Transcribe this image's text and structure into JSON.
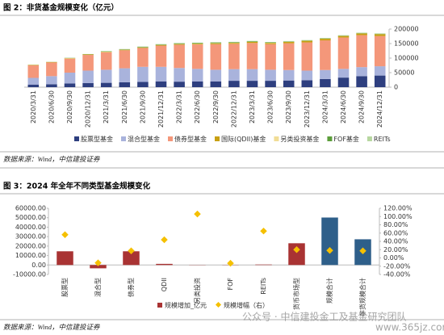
{
  "chart_data": [
    {
      "type": "stacked_bar",
      "title": "图 2：非货基金规模变化（亿元）",
      "source": "数据来源：Wind，中信建投证券",
      "categories": [
        "2020/3/31",
        "2020/6/30",
        "2020/9/30",
        "2020/12/31",
        "2021/3/31",
        "2021/6/30",
        "2021/9/30",
        "2021/12/31",
        "2022/3/31",
        "2022/6/30",
        "2022/9/30",
        "2022/12/31",
        "2023/3/31",
        "2023/6/30",
        "2023/9/30",
        "2023/12/31",
        "2024/3/31",
        "2024/6/30",
        "2024/9/30",
        "2024/12/31"
      ],
      "series": [
        {
          "name": "股票型基金",
          "color": "#2e3f7f",
          "values": [
            9000,
            10000,
            13000,
            14000,
            15000,
            17000,
            18000,
            20000,
            19000,
            20000,
            20000,
            22000,
            22000,
            22000,
            23000,
            24000,
            28000,
            33000,
            38000,
            40000
          ]
        },
        {
          "name": "混合型基金",
          "color": "#a9b3dc",
          "values": [
            23000,
            28000,
            37000,
            43000,
            45000,
            48000,
            52000,
            50000,
            47000,
            43000,
            40000,
            40000,
            40000,
            38000,
            36000,
            33000,
            31000,
            30000,
            31000,
            32000
          ]
        },
        {
          "name": "债券型基金",
          "color": "#f4977a",
          "values": [
            43000,
            47000,
            48000,
            54000,
            60000,
            62000,
            65000,
            73000,
            80000,
            84000,
            88000,
            87000,
            90000,
            88000,
            92000,
            97000,
            102000,
            108000,
            110000,
            104000
          ]
        },
        {
          "name": "国际(QDII)基金",
          "color": "#c8a012",
          "values": [
            1300,
            1300,
            1400,
            1500,
            1600,
            1600,
            1700,
            2000,
            2300,
            2500,
            3000,
            3300,
            3700,
            4000,
            4500,
            5300,
            5500,
            5000,
            5600,
            6000
          ]
        },
        {
          "name": "另类投资基金",
          "color": "#f1dd96",
          "values": [
            500,
            600,
            600,
            600,
            700,
            700,
            700,
            700,
            700,
            700,
            700,
            700,
            700,
            700,
            700,
            700,
            700,
            700,
            700,
            700
          ]
        },
        {
          "name": "FOF基金",
          "color": "#5c9e3a",
          "values": [
            300,
            400,
            700,
            900,
            1300,
            1600,
            2000,
            2000,
            2100,
            2200,
            2200,
            2000,
            1900,
            1600,
            1500,
            1300,
            1200,
            1000,
            1000,
            1000
          ]
        },
        {
          "name": "REITs",
          "color": "#b7d7a0",
          "values": [
            0,
            0,
            0,
            0,
            0,
            100,
            400,
            600,
            800,
            900,
            900,
            1000,
            1000,
            1000,
            1000,
            1000,
            1100,
            1200,
            1500,
            1600
          ]
        }
      ],
      "ylim": [
        0,
        200000
      ],
      "yticks": [
        0,
        50000,
        100000,
        150000,
        200000
      ],
      "y_axis_side": "right",
      "legend": "bottom"
    },
    {
      "type": "combo",
      "title": "图 3：2024 年全年不同类型基金规模变化",
      "source": "数据来源：Wind，中信建投证券",
      "categories": [
        "股票型",
        "混合型",
        "债券型",
        "QDII",
        "另类投资",
        "FOF",
        "REITs",
        "货币市场型",
        "规模合计",
        "非货规模合计"
      ],
      "series": [
        {
          "name": "规模增加_亿元",
          "type": "bar",
          "color": "#a93333",
          "colors": [
            "#a93333",
            "#a93333",
            "#a93333",
            "#a93333",
            "#a93333",
            "#a93333",
            "#a93333",
            "#a93333",
            "#2e5f8a",
            "#2e5f8a"
          ],
          "values": [
            14500,
            -3500,
            14500,
            1200,
            200,
            -200,
            500,
            23000,
            50200,
            27200
          ]
        },
        {
          "name": "规模增幅（右）",
          "type": "scatter",
          "axis": "y2",
          "color": "#f5c000",
          "values": [
            56,
            -12,
            17,
            44,
            106,
            -13,
            65,
            20,
            18,
            17
          ]
        }
      ],
      "ylim": [
        -10000,
        60000
      ],
      "yticks": [
        {
          "value": -10000,
          "label": "-10000.00"
        },
        {
          "value": 0,
          "label": "0.00"
        },
        {
          "value": 10000,
          "label": "10000.00"
        },
        {
          "value": 20000,
          "label": "20000.00"
        },
        {
          "value": 30000,
          "label": "30000.00"
        },
        {
          "value": 40000,
          "label": "40000.00"
        },
        {
          "value": 50000,
          "label": "50000.00"
        },
        {
          "value": 60000,
          "label": "60000.00"
        }
      ],
      "y2lim": [
        -40,
        120
      ],
      "y2ticks": [
        {
          "value": -40,
          "label": "-40.00%"
        },
        {
          "value": -20,
          "label": "-20.00%"
        },
        {
          "value": 0,
          "label": "0.00%"
        },
        {
          "value": 20,
          "label": "20.00%"
        },
        {
          "value": 40,
          "label": "40.00%"
        },
        {
          "value": 60,
          "label": "60.00%"
        },
        {
          "value": 80,
          "label": "80.00%"
        },
        {
          "value": 100,
          "label": "100.00%"
        },
        {
          "value": 120,
          "label": "120.00%"
        }
      ],
      "legend": "bottom"
    }
  ],
  "watermark": [
    "公众号 · 中信建投金工及基金研究团队",
    "www.365jz.com"
  ]
}
